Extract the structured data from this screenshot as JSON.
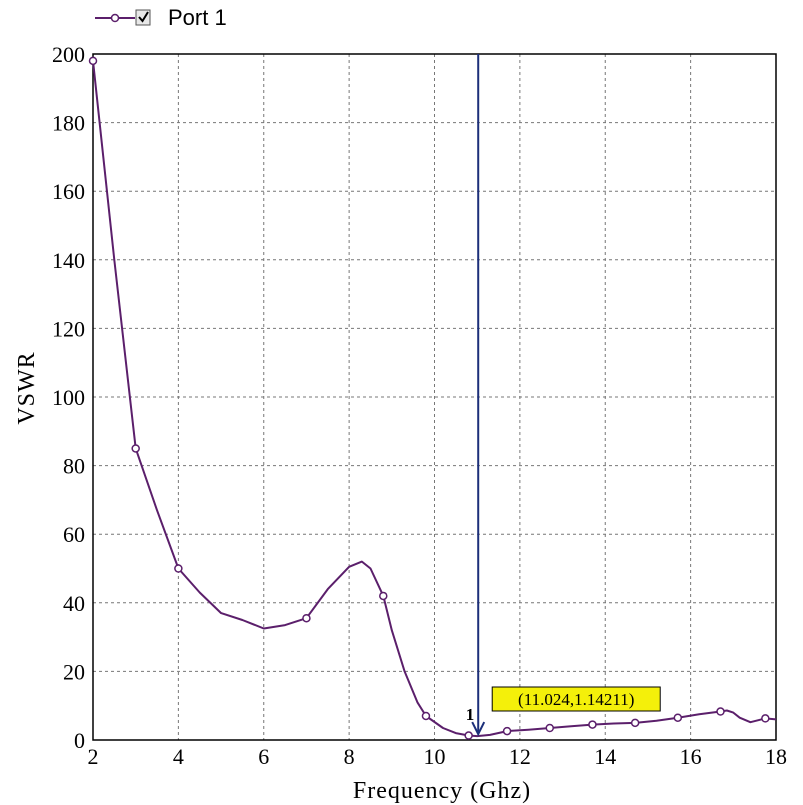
{
  "chart_data": {
    "type": "line",
    "title": "",
    "xlabel": "Frequency (Ghz)",
    "ylabel": "VSWR",
    "xlim": [
      2,
      18
    ],
    "ylim": [
      0,
      200
    ],
    "xticks": [
      2,
      4,
      6,
      8,
      10,
      12,
      14,
      16,
      18
    ],
    "yticks": [
      0,
      20,
      40,
      60,
      80,
      100,
      120,
      140,
      160,
      180,
      200
    ],
    "grid": true,
    "legend_position": "top-left",
    "line_color": "#5b1f6b",
    "marker_line_color": "#1c2f7a",
    "series": [
      {
        "name": "Port 1",
        "x": [
          2.0,
          2.5,
          3.0,
          3.5,
          4.0,
          4.5,
          5.0,
          5.5,
          6.0,
          6.5,
          7.0,
          7.5,
          8.0,
          8.3,
          8.5,
          8.8,
          9.0,
          9.3,
          9.6,
          9.8,
          10.2,
          10.5,
          10.8,
          11.0,
          11.3,
          11.7,
          12.2,
          12.7,
          13.2,
          13.7,
          14.2,
          14.7,
          15.2,
          15.7,
          16.2,
          16.7,
          16.85,
          17.0,
          17.15,
          17.4,
          17.75,
          18.0
        ],
        "y": [
          198,
          140,
          85,
          67,
          50,
          43,
          37,
          35,
          32.5,
          33.5,
          35.5,
          44,
          50.5,
          52,
          50,
          42,
          32,
          20,
          11,
          7,
          3.5,
          2,
          1.3,
          1.14,
          1.5,
          2.6,
          3.0,
          3.5,
          4.0,
          4.5,
          4.8,
          5.0,
          5.6,
          6.5,
          7.5,
          8.3,
          8.6,
          8.0,
          6.5,
          5.2,
          6.3,
          6.0
        ],
        "markers_x": [
          2.0,
          3.0,
          4.0,
          7.0,
          8.8,
          9.8,
          10.8,
          11.7,
          12.7,
          13.7,
          14.7,
          15.7,
          16.7,
          17.75
        ],
        "markers_y": [
          198,
          85,
          50,
          35.5,
          42,
          7,
          1.3,
          2.6,
          3.5,
          4.5,
          5.0,
          6.5,
          8.3,
          6.3
        ]
      }
    ],
    "marker": {
      "id": "1",
      "x": 11.024,
      "y": 1.14211,
      "label": "(11.024,1.14211)",
      "label_bg": "#f4f00a"
    }
  }
}
